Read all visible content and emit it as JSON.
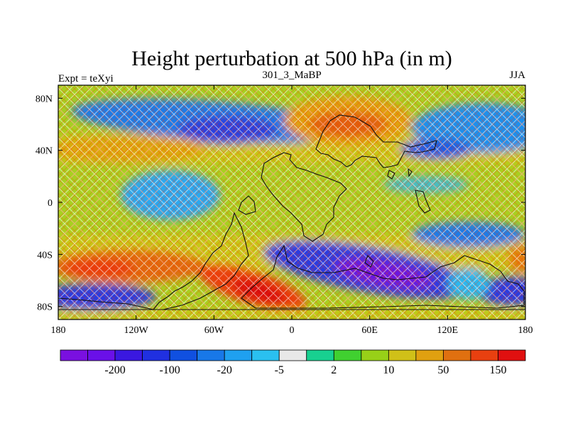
{
  "plot": {
    "title": "Height perturbation at 500 hPa (in m)",
    "left_label": "Expt = teXyi",
    "center_label": "301_3_MaBP",
    "right_label": "JJA"
  },
  "map": {
    "projection": "cylindrical-equidistant",
    "lon_range": [
      -180,
      180
    ],
    "lat_range": [
      -90,
      90
    ],
    "x_ticks": [
      {
        "value": -180,
        "label": "180"
      },
      {
        "value": -120,
        "label": "120W"
      },
      {
        "value": -60,
        "label": "60W"
      },
      {
        "value": 0,
        "label": "0"
      },
      {
        "value": 60,
        "label": "60E"
      },
      {
        "value": 120,
        "label": "120E"
      },
      {
        "value": 180,
        "label": "180"
      }
    ],
    "y_ticks": [
      {
        "value": 80,
        "label": "80N"
      },
      {
        "value": 40,
        "label": "40N"
      },
      {
        "value": 0,
        "label": "0"
      },
      {
        "value": -40,
        "label": "40S"
      },
      {
        "value": -80,
        "label": "80S"
      }
    ],
    "fill": "filled-contour with stippled significance cross-hatching",
    "coastline": "paleogeographic land outline (dark lines)"
  },
  "chart_data": {
    "type": "heatmap",
    "field": "500 hPa height perturbation (m)",
    "features": [
      {
        "kind": "low",
        "lon": -65,
        "lat": 55,
        "value": -100
      },
      {
        "kind": "high",
        "lon": 45,
        "lat": 62,
        "value": 150
      },
      {
        "kind": "high",
        "lon": -150,
        "lat": 42,
        "value": 50
      },
      {
        "kind": "low",
        "lon": -120,
        "lat": 5,
        "value": -20
      },
      {
        "kind": "low",
        "lon": 150,
        "lat": 50,
        "value": -20
      },
      {
        "kind": "high",
        "lon": -145,
        "lat": -48,
        "value": 150
      },
      {
        "kind": "high",
        "lon": -35,
        "lat": -68,
        "value": 200
      },
      {
        "kind": "low",
        "lon": 65,
        "lat": -55,
        "value": -200
      },
      {
        "kind": "low",
        "lon": 140,
        "lat": -40,
        "value": -100
      },
      {
        "kind": "low",
        "lon": -150,
        "lat": -72,
        "value": -100
      }
    ],
    "colorbar": {
      "colors": [
        "#7a10e0",
        "#6a10e8",
        "#3a18e0",
        "#2030e0",
        "#1050e0",
        "#1878e8",
        "#1fa0f0",
        "#2ac0f0",
        "#e8e8e8",
        "#18d090",
        "#40d030",
        "#98d018",
        "#d0c018",
        "#e0a010",
        "#e07010",
        "#e84010",
        "#e01010"
      ],
      "tick_labels": [
        {
          "after_index": 1,
          "label": "-200"
        },
        {
          "after_index": 3,
          "label": "-100"
        },
        {
          "after_index": 5,
          "label": "-20"
        },
        {
          "after_index": 7,
          "label": "-5"
        },
        {
          "after_index": 9,
          "label": "2"
        },
        {
          "after_index": 11,
          "label": "10"
        },
        {
          "after_index": 13,
          "label": "50"
        },
        {
          "after_index": 15,
          "label": "150"
        }
      ]
    }
  }
}
